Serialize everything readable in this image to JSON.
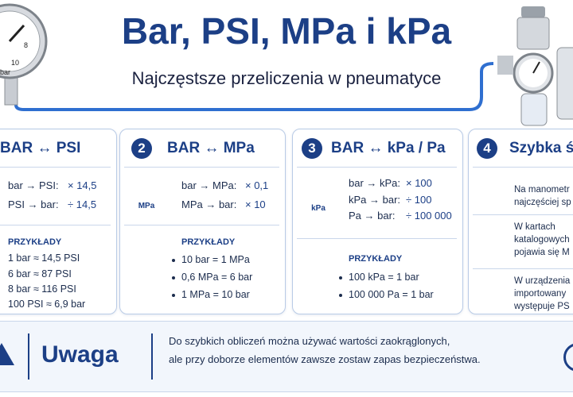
{
  "header": {
    "title": "Bar, PSI, MPa i kPa",
    "subtitle": "Najczęstsze przeliczenia w pneumatyce"
  },
  "gauge": {
    "labels": [
      "8",
      "10",
      "bar"
    ]
  },
  "cards": [
    {
      "title": "BAR ↔ PSI",
      "rules": [
        [
          "bar → PSI:",
          "× 14,5"
        ],
        [
          "PSI → bar:",
          "÷ 14,5"
        ]
      ],
      "examples_label": "PRZYKŁADY",
      "examples": [
        "1 bar ≈ 14,5 PSI",
        "6 bar ≈ 87 PSI",
        "8 bar ≈ 116 PSI",
        "100 PSI ≈ 6,9 bar"
      ]
    },
    {
      "number": "2",
      "title": "BAR ↔ MPa",
      "icon_label": "MPa",
      "rules": [
        [
          "bar → MPa:",
          "× 0,1"
        ],
        [
          "MPa → bar:",
          "× 10"
        ]
      ],
      "examples_label": "PRZYKŁADY",
      "examples": [
        "10 bar = 1 MPa",
        "0,6 MPa = 6 bar",
        "1 MPa = 10 bar"
      ]
    },
    {
      "number": "3",
      "title": "BAR ↔ kPa / Pa",
      "icon_label": "kPa",
      "rules": [
        [
          "bar → kPa:",
          "× 100"
        ],
        [
          "kPa → bar:",
          "÷ 100"
        ],
        [
          "Pa → bar:",
          "÷ 100 000"
        ]
      ],
      "examples_label": "PRZYKŁADY",
      "examples": [
        "100 kPa = 1 bar",
        "100 000 Pa = 1 bar"
      ]
    },
    {
      "number": "4",
      "title": "Szybka ś",
      "tips": [
        [
          "Na manometr",
          "najczęściej sp"
        ],
        [
          "W kartach",
          "katalogowych",
          "pojawia się M"
        ],
        [
          "W urządzenia",
          "importowany",
          "występuje PS"
        ]
      ]
    }
  ],
  "notice": {
    "title": "Uwaga",
    "lines": [
      "Do szybkich obliczeń można używać wartości zaokrąglonych,",
      "ale przy doborze elementów zawsze zostaw zapas bezpieczeństwa."
    ]
  }
}
